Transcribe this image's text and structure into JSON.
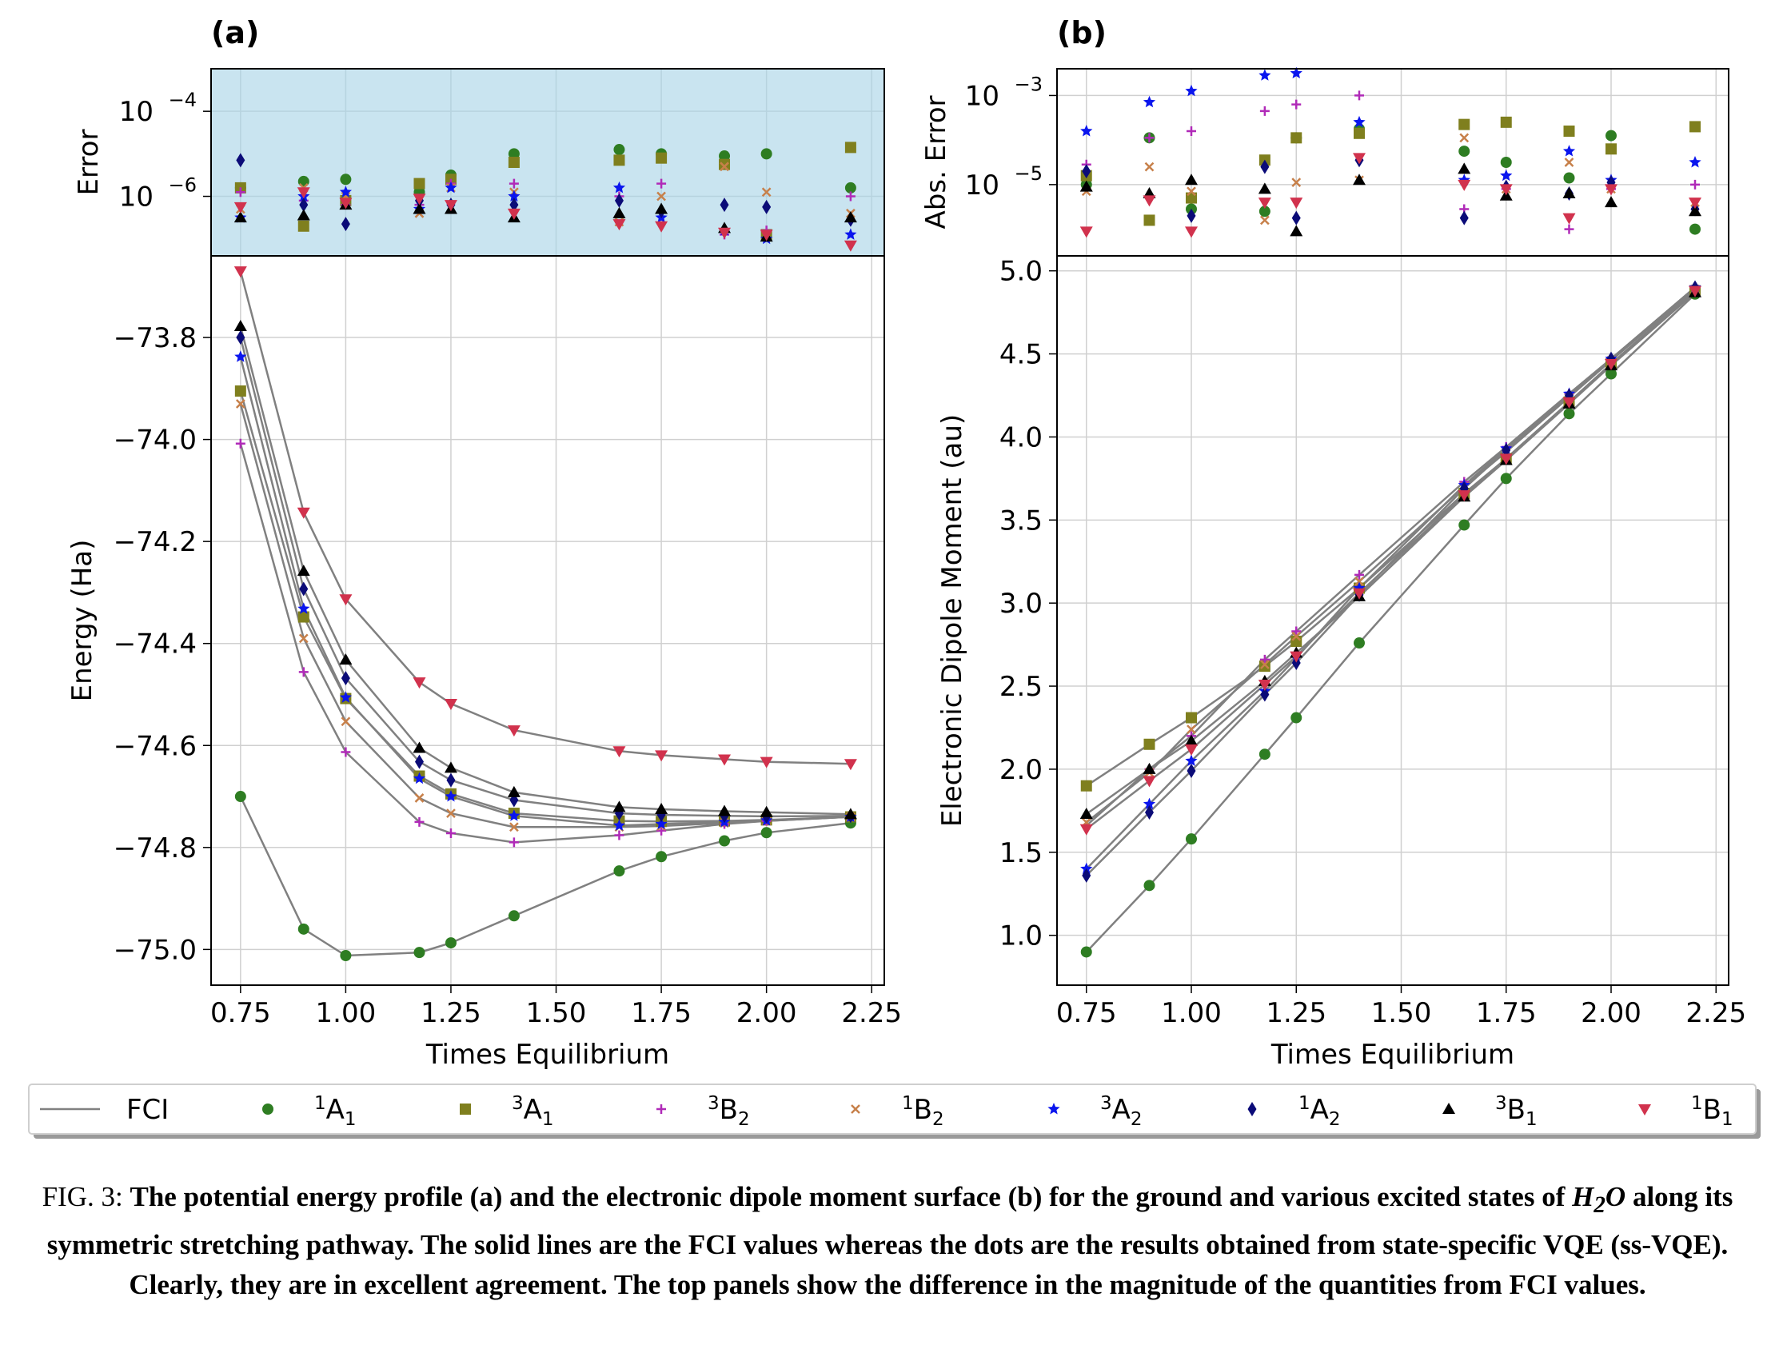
{
  "panels": {
    "a_label": "(a)",
    "b_label": "(b)"
  },
  "axes_text": {
    "a_top_ylabel": "Error",
    "a_ylabel": "Energy (Ha)",
    "a_xlabel": "Times Equilibrium",
    "b_top_ylabel": "Abs. Error",
    "b_ylabel": "Electronic Dipole Moment (au)",
    "b_xlabel": "Times Equilibrium"
  },
  "legend": {
    "fci": "FCI",
    "entries": [
      {
        "sup": "1",
        "base": "A",
        "sub": "1"
      },
      {
        "sup": "3",
        "base": "A",
        "sub": "1"
      },
      {
        "sup": "3",
        "base": "B",
        "sub": "2"
      },
      {
        "sup": "1",
        "base": "B",
        "sub": "2"
      },
      {
        "sup": "3",
        "base": "A",
        "sub": "2"
      },
      {
        "sup": "1",
        "base": "A",
        "sub": "2"
      },
      {
        "sup": "3",
        "base": "B",
        "sub": "1"
      },
      {
        "sup": "1",
        "base": "B",
        "sub": "1"
      }
    ]
  },
  "caption": {
    "lead": "FIG. 3:",
    "pre": "The potential energy profile (a) and the electronic dipole moment surface (b) for the ground and various excited states of",
    "molecule": "H",
    "molecule_sub": "2",
    "molecule_end": "O",
    "post": "along its symmetric stretching pathway. The solid lines are the FCI values whereas the dots are the results obtained from state-specific VQE (ss-VQE). Clearly, they are in excellent agreement. The top panels show the difference in the magnitude of the quantities from FCI values."
  },
  "chart_data": [
    {
      "id": "a_main",
      "type": "line",
      "x": [
        0.75,
        0.9,
        1.0,
        1.175,
        1.25,
        1.4,
        1.65,
        1.75,
        1.9,
        2.0,
        2.2
      ],
      "xticks": [
        "0.75",
        "1.00",
        "1.25",
        "1.50",
        "1.75",
        "2.00",
        "2.25"
      ],
      "xlim": [
        0.68,
        2.28
      ],
      "ylim": [
        -75.07,
        -73.64
      ],
      "yticks": [
        "−73.8",
        "−74.0",
        "−74.2",
        "−74.4",
        "−74.6",
        "−74.8",
        "−75.0"
      ],
      "grid": true,
      "series": [
        {
          "name": "1A1",
          "color": "#2e7d22",
          "marker": "circle",
          "values": [
            -74.7,
            -74.96,
            -75.012,
            -75.006,
            -74.987,
            -74.934,
            -74.846,
            -74.818,
            -74.787,
            -74.771,
            -74.752
          ]
        },
        {
          "name": "3A1",
          "color": "#7f7f1e",
          "marker": "square",
          "values": [
            -73.905,
            -74.348,
            -74.508,
            -74.66,
            -74.695,
            -74.733,
            -74.748,
            -74.749,
            -74.748,
            -74.746,
            -74.74
          ]
        },
        {
          "name": "3B2",
          "color": "#b02ab8",
          "marker": "plus",
          "values": [
            -74.008,
            -74.456,
            -74.613,
            -74.75,
            -74.772,
            -74.79,
            -74.776,
            -74.767,
            -74.754,
            -74.748,
            -74.74
          ]
        },
        {
          "name": "1B2",
          "color": "#c7804a",
          "marker": "x",
          "values": [
            -73.93,
            -74.39,
            -74.553,
            -74.703,
            -74.733,
            -74.76,
            -74.76,
            -74.758,
            -74.752,
            -74.748,
            -74.74
          ]
        },
        {
          "name": "3A2",
          "color": "#0a15ee",
          "marker": "star",
          "values": [
            -73.838,
            -74.332,
            -74.506,
            -74.665,
            -74.7,
            -74.738,
            -74.757,
            -74.754,
            -74.75,
            -74.747,
            -74.74
          ]
        },
        {
          "name": "1A2",
          "color": "#0b0b78",
          "marker": "diamond",
          "values": [
            -73.8,
            -74.293,
            -74.468,
            -74.632,
            -74.668,
            -74.707,
            -74.733,
            -74.736,
            -74.738,
            -74.739,
            -74.738
          ]
        },
        {
          "name": "3B1",
          "color": "#000000",
          "marker": "triangle-up",
          "values": [
            -73.778,
            -74.258,
            -74.432,
            -74.605,
            -74.644,
            -74.692,
            -74.721,
            -74.725,
            -74.729,
            -74.731,
            -74.735
          ]
        },
        {
          "name": "1B1",
          "color": "#d1324d",
          "marker": "triangle-down",
          "values": [
            -73.67,
            -74.143,
            -74.313,
            -74.476,
            -74.518,
            -74.57,
            -74.611,
            -74.619,
            -74.627,
            -74.632,
            -74.636
          ]
        }
      ]
    },
    {
      "id": "a_error",
      "type": "scatter",
      "x": [
        0.75,
        0.9,
        1.0,
        1.175,
        1.25,
        1.4,
        1.65,
        1.75,
        1.9,
        2.0,
        2.2
      ],
      "xlim": [
        0.68,
        2.28
      ],
      "ylog": true,
      "ylim_exp": [
        -7.4,
        -3.0
      ],
      "yticks": [
        {
          "base": "10",
          "exp": "−4",
          "e": -4
        },
        {
          "base": "10",
          "exp": "−6",
          "e": -6
        }
      ],
      "background": "#c9e4f0",
      "series": [
        {
          "name": "1A1",
          "color": "#2e7d22",
          "marker": "circle",
          "values_exp": [
            -5.8,
            -5.65,
            -5.6,
            -5.9,
            -5.5,
            -5.0,
            -4.9,
            -5.0,
            -5.05,
            -5.0,
            -5.8
          ]
        },
        {
          "name": "3A1",
          "color": "#7f7f1e",
          "marker": "square",
          "values_exp": [
            -5.8,
            -6.7,
            -6.1,
            -5.7,
            -5.6,
            -5.2,
            -5.15,
            -5.1,
            -5.25,
            -6.9,
            -4.85
          ]
        },
        {
          "name": "3B2",
          "color": "#b02ab8",
          "marker": "plus",
          "values_exp": [
            -5.9,
            -6.1,
            -6.2,
            -6.2,
            -5.7,
            -5.7,
            -6.0,
            -5.7,
            -6.9,
            -6.8,
            -6.0
          ]
        },
        {
          "name": "1B2",
          "color": "#c7804a",
          "marker": "x",
          "values_exp": [
            -6.3,
            -5.8,
            -6.0,
            -6.4,
            -5.8,
            -5.9,
            -6.6,
            -6.0,
            -5.3,
            -5.9,
            -6.4
          ]
        },
        {
          "name": "3A2",
          "color": "#0a15ee",
          "marker": "star",
          "values_exp": [
            -6.5,
            -6.0,
            -5.9,
            -6.3,
            -5.8,
            -6.0,
            -5.8,
            -6.5,
            -6.8,
            -7.0,
            -6.9
          ]
        },
        {
          "name": "1A2",
          "color": "#0b0b78",
          "marker": "diamond",
          "values_exp": [
            -5.15,
            -6.2,
            -6.65,
            -6.1,
            -6.2,
            -6.2,
            -6.1,
            -6.35,
            -6.2,
            -6.25,
            -6.55
          ]
        },
        {
          "name": "3B1",
          "color": "#000000",
          "marker": "triangle-up",
          "values_exp": [
            -6.5,
            -6.45,
            -6.2,
            -6.3,
            -6.3,
            -6.5,
            -6.4,
            -6.3,
            -6.75,
            -6.95,
            -6.5
          ]
        },
        {
          "name": "1B1",
          "color": "#d1324d",
          "marker": "triangle-down",
          "values_exp": [
            -6.25,
            -5.9,
            -6.15,
            -6.05,
            -6.2,
            -6.4,
            -6.65,
            -6.7,
            -6.85,
            -6.9,
            -7.15
          ]
        }
      ]
    },
    {
      "id": "b_main",
      "type": "line",
      "x": [
        0.75,
        0.9,
        1.0,
        1.175,
        1.25,
        1.4,
        1.65,
        1.75,
        1.9,
        2.0,
        2.2
      ],
      "xticks": [
        "0.75",
        "1.00",
        "1.25",
        "1.50",
        "1.75",
        "2.00",
        "2.25"
      ],
      "xlim": [
        0.68,
        2.28
      ],
      "ylim": [
        0.7,
        5.09
      ],
      "yticks": [
        "5.0",
        "4.5",
        "4.0",
        "3.5",
        "3.0",
        "2.5",
        "2.0",
        "1.5",
        "1.0"
      ],
      "grid": true,
      "series": [
        {
          "name": "1A1",
          "color": "#2e7d22",
          "marker": "circle",
          "values": [
            0.9,
            1.3,
            1.58,
            2.09,
            2.31,
            2.76,
            3.47,
            3.75,
            4.14,
            4.38,
            4.86
          ]
        },
        {
          "name": "3A1",
          "color": "#7f7f1e",
          "marker": "square",
          "values": [
            1.9,
            2.15,
            2.31,
            2.62,
            2.77,
            3.09,
            3.66,
            3.87,
            4.21,
            4.44,
            4.88
          ]
        },
        {
          "name": "3B2",
          "color": "#b02ab8",
          "marker": "plus",
          "values": [
            1.66,
            2.0,
            2.2,
            2.66,
            2.83,
            3.17,
            3.73,
            3.94,
            4.26,
            4.47,
            4.9
          ]
        },
        {
          "name": "1B2",
          "color": "#c7804a",
          "marker": "x",
          "values": [
            1.68,
            1.98,
            2.24,
            2.63,
            2.8,
            3.13,
            3.7,
            3.91,
            4.24,
            4.46,
            4.89
          ]
        },
        {
          "name": "3A2",
          "color": "#0a15ee",
          "marker": "star",
          "values": [
            1.4,
            1.79,
            2.05,
            2.47,
            2.67,
            3.09,
            3.71,
            3.93,
            4.26,
            4.47,
            4.9
          ]
        },
        {
          "name": "1A2",
          "color": "#0b0b78",
          "marker": "diamond",
          "values": [
            1.36,
            1.74,
            1.99,
            2.45,
            2.64,
            3.05,
            3.69,
            3.92,
            4.25,
            4.47,
            4.9
          ]
        },
        {
          "name": "3B1",
          "color": "#000000",
          "marker": "triangle-up",
          "values": [
            1.73,
            2.0,
            2.17,
            2.53,
            2.7,
            3.04,
            3.64,
            3.86,
            4.2,
            4.43,
            4.87
          ]
        },
        {
          "name": "1B1",
          "color": "#d1324d",
          "marker": "triangle-down",
          "values": [
            1.64,
            1.93,
            2.12,
            2.51,
            2.68,
            3.06,
            3.65,
            3.87,
            4.21,
            4.44,
            4.88
          ]
        }
      ]
    },
    {
      "id": "b_error",
      "type": "scatter",
      "x": [
        0.75,
        0.9,
        1.0,
        1.175,
        1.25,
        1.4,
        1.65,
        1.75,
        1.9,
        2.0,
        2.2
      ],
      "xlim": [
        0.68,
        2.28
      ],
      "ylog": true,
      "ylim_exp": [
        -6.6,
        -2.4
      ],
      "yticks": [
        {
          "base": "10",
          "exp": "−3",
          "e": -3
        },
        {
          "base": "10",
          "exp": "−5",
          "e": -5
        }
      ],
      "background": "#ffffff",
      "series": [
        {
          "name": "1A1",
          "color": "#2e7d22",
          "marker": "circle",
          "values_exp": [
            -5.0,
            -3.95,
            -5.55,
            -5.6,
            -3.95,
            -3.75,
            -4.25,
            -4.5,
            -4.85,
            -3.9,
            -6.0
          ]
        },
        {
          "name": "3A1",
          "color": "#7f7f1e",
          "marker": "square",
          "values_exp": [
            -4.8,
            -5.8,
            -5.3,
            -4.45,
            -3.95,
            -3.85,
            -3.65,
            -3.6,
            -3.8,
            -4.2,
            -3.7
          ]
        },
        {
          "name": "3B2",
          "color": "#b02ab8",
          "marker": "plus",
          "values_exp": [
            -4.55,
            -3.95,
            -3.8,
            -3.35,
            -3.2,
            -3.0,
            -5.55,
            -5.1,
            -6.0,
            -5.1,
            -5.0
          ]
        },
        {
          "name": "1B2",
          "color": "#c7804a",
          "marker": "x",
          "values_exp": [
            -5.15,
            -4.6,
            -5.15,
            -5.8,
            -4.95,
            -4.9,
            -3.95,
            -5.1,
            -4.5,
            -5.1,
            -5.4
          ]
        },
        {
          "name": "3A2",
          "color": "#0a15ee",
          "marker": "star",
          "values_exp": [
            -3.8,
            -3.15,
            -2.9,
            -2.55,
            -2.5,
            -3.6,
            -4.9,
            -4.8,
            -4.25,
            -4.9,
            -4.5
          ]
        },
        {
          "name": "1A2",
          "color": "#0b0b78",
          "marker": "diamond",
          "values_exp": [
            -4.7,
            -5.25,
            -5.7,
            -4.6,
            -5.75,
            -4.45,
            -5.75,
            -5.05,
            -5.2,
            -4.95,
            -5.55
          ]
        },
        {
          "name": "3B1",
          "color": "#000000",
          "marker": "triangle-up",
          "values_exp": [
            -5.05,
            -5.2,
            -4.9,
            -5.1,
            -6.05,
            -4.9,
            -4.65,
            -5.25,
            -5.2,
            -5.4,
            -5.6
          ]
        },
        {
          "name": "1B1",
          "color": "#d1324d",
          "marker": "triangle-down",
          "values_exp": [
            -6.05,
            -5.35,
            -6.05,
            -5.4,
            -5.4,
            -4.4,
            -5.0,
            -5.1,
            -5.75,
            -5.1,
            -5.4
          ]
        }
      ]
    }
  ]
}
